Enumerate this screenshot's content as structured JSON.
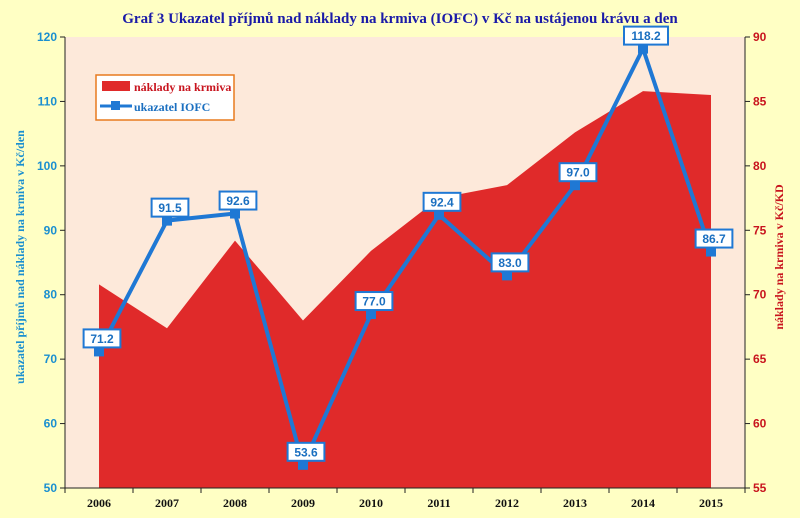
{
  "chart_data": {
    "type": "line",
    "title": "Graf 3 Ukazatel příjmů nad náklady na krmiva (IOFC) v  Kč na ustájenou krávu a den",
    "ylabel": "ukazatel příjmů nad náklady na krmiva v  Kč/den",
    "y2label": "náklady na krmiva v Kč/KD",
    "categories": [
      "2006",
      "2007",
      "2008",
      "2009",
      "2010",
      "2011",
      "2012",
      "2013",
      "2014",
      "2015"
    ],
    "ylim": [
      50,
      120
    ],
    "y_ticks": [
      "50",
      "60",
      "70",
      "80",
      "90",
      "100",
      "110",
      "120"
    ],
    "y2lim": [
      55,
      90
    ],
    "y2_ticks": [
      "55",
      "60",
      "65",
      "70",
      "75",
      "80",
      "85",
      "90"
    ],
    "series": [
      {
        "name": "náklady na krmiva",
        "type": "area",
        "axis": "right",
        "color": "#e02a2a",
        "values": [
          70.8,
          67.4,
          74.2,
          68.0,
          73.4,
          77.5,
          78.5,
          82.6,
          85.8,
          85.5
        ]
      },
      {
        "name": "ukazatel IOFC",
        "type": "line",
        "axis": "left",
        "color": "#1f78d4",
        "values": [
          71.2,
          91.5,
          92.6,
          53.6,
          77.0,
          92.4,
          83.0,
          97.0,
          118.2,
          86.7
        ],
        "labels": [
          "71.2",
          "91.5",
          "92.6",
          "53.6",
          "77.0",
          "92.4",
          "83.0",
          "97.0",
          "118.2",
          "86.7"
        ]
      }
    ],
    "legend_position": "top-left",
    "grid": false,
    "colors": {
      "background": "#ffffc4",
      "plot_background": "#fde9da",
      "left_axis": "#1a8fd0",
      "right_axis": "#c8141e",
      "title": "#1a1aa8",
      "legend_border": "#e87a1e"
    }
  }
}
